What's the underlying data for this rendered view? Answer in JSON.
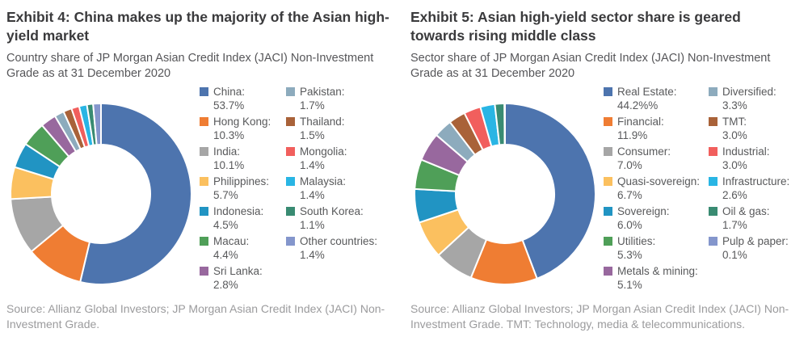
{
  "exhibit4": {
    "title": "Exhibit 4: China makes up the majority of the Asian high-yield market",
    "subtitle": "Country share of JP Morgan Asian Credit Index (JACI) Non-Investment Grade as at 31 December 2020",
    "source": "Source: Allianz Global Investors; JP Morgan Asian Credit Index (JACI) Non-Investment Grade."
  },
  "exhibit5": {
    "title": "Exhibit 5: Asian high-yield sector share is geared towards rising middle class",
    "subtitle": "Sector share of JP Morgan Asian Credit Index (JACI) Non-Investment Grade as at 31 December 2020",
    "source": "Source: Allianz Global Investors; JP Morgan Asian Credit Index (JACI) Non-Investment Grade. TMT: Technology, media & telecommunications."
  },
  "chart_data": [
    {
      "type": "pie",
      "variant": "donut",
      "title": "Exhibit 4: China makes up the majority of the Asian high-yield market",
      "start_angle_deg": -90,
      "direction": "clockwise",
      "legend_position": "right",
      "legend_columns_split": 7,
      "segments": [
        {
          "label": "China",
          "legend_label": "China:",
          "value": 53.7,
          "display_value": "53.7%",
          "color": "#4d74ae"
        },
        {
          "label": "Hong Kong",
          "legend_label": "Hong Kong:",
          "value": 10.3,
          "display_value": "10.3%",
          "color": "#ef7d33"
        },
        {
          "label": "India",
          "legend_label": "India:",
          "value": 10.1,
          "display_value": "10.1%",
          "color": "#a6a6a6"
        },
        {
          "label": "Philippines",
          "legend_label": "Philippines:",
          "value": 5.7,
          "display_value": "5.7%",
          "color": "#fbc05f"
        },
        {
          "label": "Indonesia",
          "legend_label": "Indonesia:",
          "value": 4.5,
          "display_value": "4.5%",
          "color": "#2194c3"
        },
        {
          "label": "Macau",
          "legend_label": "Macau:",
          "value": 4.4,
          "display_value": "4.4%",
          "color": "#4f9f58"
        },
        {
          "label": "Sri Lanka",
          "legend_label": "Sri Lanka:",
          "value": 2.8,
          "display_value": "2.8%",
          "color": "#98689e"
        },
        {
          "label": "Pakistan",
          "legend_label": "Pakistan:",
          "value": 1.7,
          "display_value": "1.7%",
          "color": "#8dabbd"
        },
        {
          "label": "Thailand",
          "legend_label": "Thailand:",
          "value": 1.5,
          "display_value": "1.5%",
          "color": "#a96239"
        },
        {
          "label": "Mongolia",
          "legend_label": "Mongolia:",
          "value": 1.4,
          "display_value": "1.4%",
          "color": "#f15f5d"
        },
        {
          "label": "Malaysia",
          "legend_label": "Malaysia:",
          "value": 1.4,
          "display_value": "1.4%",
          "color": "#29b5e4"
        },
        {
          "label": "South Korea",
          "legend_label": "South Korea:",
          "value": 1.1,
          "display_value": "1.1%",
          "color": "#398b72"
        },
        {
          "label": "Other countries",
          "legend_label": "Other countries:",
          "value": 1.4,
          "display_value": "1.4%",
          "color": "#8496cc"
        }
      ]
    },
    {
      "type": "pie",
      "variant": "donut",
      "title": "Exhibit 5: Asian high-yield sector share is geared towards rising middle class",
      "start_angle_deg": -90,
      "direction": "clockwise",
      "legend_position": "right",
      "legend_columns_split": 7,
      "segments": [
        {
          "label": "Real Estate",
          "legend_label": "Real Estate:",
          "value": 44.2,
          "display_value": "44.2%%",
          "color": "#4d74ae"
        },
        {
          "label": "Financial",
          "legend_label": "Financial:",
          "value": 11.9,
          "display_value": "11.9%",
          "color": "#ef7d33"
        },
        {
          "label": "Consumer",
          "legend_label": "Consumer:",
          "value": 7.0,
          "display_value": "7.0%",
          "color": "#a6a6a6"
        },
        {
          "label": "Quasi-sovereign",
          "legend_label": "Quasi-sovereign:",
          "value": 6.7,
          "display_value": "6.7%",
          "color": "#fbc05f"
        },
        {
          "label": "Sovereign",
          "legend_label": "Sovereign:",
          "value": 6.0,
          "display_value": "6.0%",
          "color": "#2194c3"
        },
        {
          "label": "Utilities",
          "legend_label": "Utilities:",
          "value": 5.3,
          "display_value": "5.3%",
          "color": "#4f9f58"
        },
        {
          "label": "Metals & mining",
          "legend_label": "Metals & mining:",
          "value": 5.1,
          "display_value": "5.1%",
          "color": "#98689e"
        },
        {
          "label": "Diversified",
          "legend_label": "Diversified:",
          "value": 3.3,
          "display_value": "3.3%",
          "color": "#8dabbd"
        },
        {
          "label": "TMT",
          "legend_label": "TMT:",
          "value": 3.0,
          "display_value": "3.0%",
          "color": "#a96239"
        },
        {
          "label": "Industrial",
          "legend_label": "Industrial:",
          "value": 3.0,
          "display_value": "3.0%",
          "color": "#f15f5d"
        },
        {
          "label": "Infrastructure",
          "legend_label": "Infrastructure:",
          "value": 2.6,
          "display_value": "2.6%",
          "color": "#29b5e4"
        },
        {
          "label": "Oil & gas",
          "legend_label": "Oil & gas:",
          "value": 1.7,
          "display_value": "1.7%",
          "color": "#398b72"
        },
        {
          "label": "Pulp & paper",
          "legend_label": "Pulp & paper:",
          "value": 0.1,
          "display_value": "0.1%",
          "color": "#8496cc"
        }
      ]
    }
  ]
}
